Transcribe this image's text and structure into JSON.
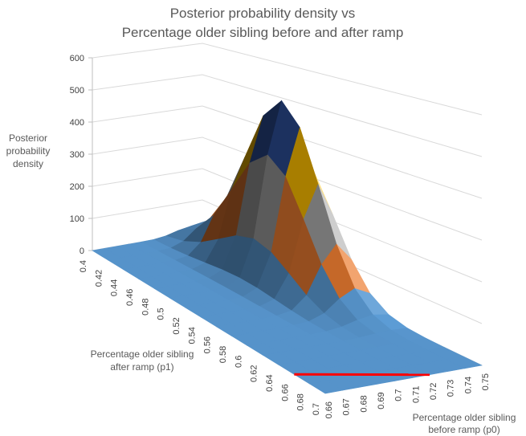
{
  "chart_data": {
    "type": "surface",
    "title": [
      "Posterior probability density vs",
      "Percentage older sibling before and after ramp"
    ],
    "zlabel": [
      "Posterior",
      "probability",
      "density"
    ],
    "xlabel": [
      "Percentage older sibling",
      "after ramp (p1)"
    ],
    "ylabel": [
      "Percentage older sibling",
      "before ramp (p0)"
    ],
    "zlim": [
      0,
      600
    ],
    "z_ticks": [
      "0",
      "100",
      "200",
      "300",
      "400",
      "500",
      "600"
    ],
    "p1": [
      0.4,
      0.42,
      0.44,
      0.46,
      0.48,
      0.5,
      0.52,
      0.54,
      0.56,
      0.58,
      0.6,
      0.62,
      0.64,
      0.66,
      0.68,
      0.7
    ],
    "p1_labels": [
      "0.4",
      "0.42",
      "0.44",
      "0.46",
      "0.48",
      "0.5",
      "0.52",
      "0.54",
      "0.56",
      "0.58",
      "0.6",
      "0.62",
      "0.64",
      "0.66",
      "0.68",
      "0.7"
    ],
    "p0": [
      0.66,
      0.67,
      0.68,
      0.69,
      0.7,
      0.71,
      0.72,
      0.73,
      0.74,
      0.75
    ],
    "p0_labels": [
      "0.66",
      "0.67",
      "0.68",
      "0.69",
      "0.7",
      "0.71",
      "0.72",
      "0.73",
      "0.74",
      "0.75"
    ],
    "z": [
      [
        0,
        0,
        0,
        0,
        0.1,
        1.0,
        5.6,
        15.8,
        22.4,
        15.8
      ],
      [
        0,
        0,
        0,
        0,
        0.3,
        3.0,
        17.2,
        48.7,
        68.9,
        48.7
      ],
      [
        0,
        0,
        0,
        0,
        0.7,
        7.3,
        41.5,
        117.2,
        165.8,
        117.2
      ],
      [
        0,
        0,
        0,
        0.1,
        1.2,
        13.6,
        77.4,
        218.9,
        309.6,
        218.9
      ],
      [
        0,
        0,
        0,
        0.1,
        1.8,
        19.8,
        112.5,
        318.0,
        449.8,
        318.0
      ],
      [
        0,
        0,
        0,
        0.1,
        2.0,
        22.4,
        127.5,
        360.6,
        510,
        360.6
      ],
      [
        0,
        0,
        0,
        0.1,
        1.8,
        19.8,
        112.5,
        318.0,
        449.8,
        318.0
      ],
      [
        0,
        0,
        0,
        0.1,
        1.2,
        13.6,
        77.4,
        218.9,
        309.6,
        218.9
      ],
      [
        0,
        0,
        0,
        0,
        0.7,
        7.3,
        41.5,
        117.2,
        165.8,
        117.2
      ],
      [
        0,
        0,
        0,
        0,
        0.3,
        3.0,
        17.2,
        48.7,
        68.9,
        48.7
      ],
      [
        0,
        0,
        0,
        0,
        0.1,
        1.0,
        5.6,
        15.8,
        22.4,
        15.8
      ],
      [
        0,
        0,
        0,
        0,
        0,
        0.2,
        1.4,
        4.0,
        5.6,
        4.0
      ],
      [
        0,
        0,
        0,
        0,
        0,
        0,
        0.3,
        0.8,
        1.1,
        0.8
      ],
      [
        0,
        0,
        0,
        0,
        0,
        0,
        0,
        0.1,
        0.1,
        0.1
      ],
      [
        0,
        0,
        0,
        0,
        0,
        0,
        0,
        0,
        0,
        0
      ],
      [
        0,
        0,
        0,
        0,
        0,
        0,
        0,
        0,
        0,
        0
      ]
    ],
    "bands": [
      {
        "range": "0-100",
        "color": "#5b9bd5"
      },
      {
        "range": "100-200",
        "color": "#ed7d31"
      },
      {
        "range": "200-300",
        "color": "#a5a5a5"
      },
      {
        "range": "300-400",
        "color": "#ffc000"
      },
      {
        "range": "400-500",
        "color": "#2f52a0"
      },
      {
        "range": "500-600",
        "color": "#70ad47"
      }
    ],
    "reference_line": {
      "color": "#ff0000",
      "p1": [
        0.66,
        0.7
      ],
      "p0": [
        0.66,
        0.72
      ]
    },
    "grid": true
  }
}
